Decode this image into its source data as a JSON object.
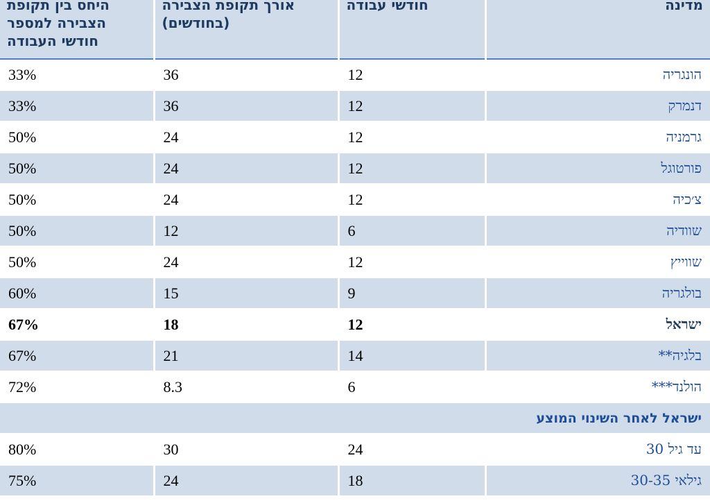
{
  "headers": {
    "country": "מדינה",
    "work_months": "חודשי עבודה",
    "accumulation": "אורך תקופת הצבירה (בחודשים)",
    "ratio": "היחס בין תקופת הצבירה למספר חודשי העבודה"
  },
  "rows": [
    {
      "country": "הונגריה",
      "work": "12",
      "acc": "36",
      "ratio": "33%"
    },
    {
      "country": "דנמרק",
      "work": "12",
      "acc": "36",
      "ratio": "33%"
    },
    {
      "country": "גרמניה",
      "work": "12",
      "acc": "24",
      "ratio": "50%"
    },
    {
      "country": "פורטוגל",
      "work": "12",
      "acc": "24",
      "ratio": "50%"
    },
    {
      "country": "צ׳כיה",
      "work": "12",
      "acc": "24",
      "ratio": "50%"
    },
    {
      "country": "שוודיה",
      "work": "6",
      "acc": "12",
      "ratio": "50%"
    },
    {
      "country": "שווייץ",
      "work": "12",
      "acc": "24",
      "ratio": "50%"
    },
    {
      "country": "בולגריה",
      "work": "9",
      "acc": "15",
      "ratio": "60%"
    },
    {
      "country": "ישראל",
      "work": "12",
      "acc": "18",
      "ratio": "67%"
    },
    {
      "country": "בלגיה**",
      "work": "14",
      "acc": "21",
      "ratio": "67%"
    },
    {
      "country": "הולנד***",
      "work": "6",
      "acc": "8.3",
      "ratio": "72%"
    }
  ],
  "section_title": "ישראל לאחר השינוי המוצע",
  "proposed_rows": [
    {
      "country": "עד גיל 30",
      "work": "24",
      "acc": "30",
      "ratio": "80%"
    },
    {
      "country": "גילאי 30-35",
      "work": "18",
      "acc": "24",
      "ratio": "75%"
    }
  ]
}
